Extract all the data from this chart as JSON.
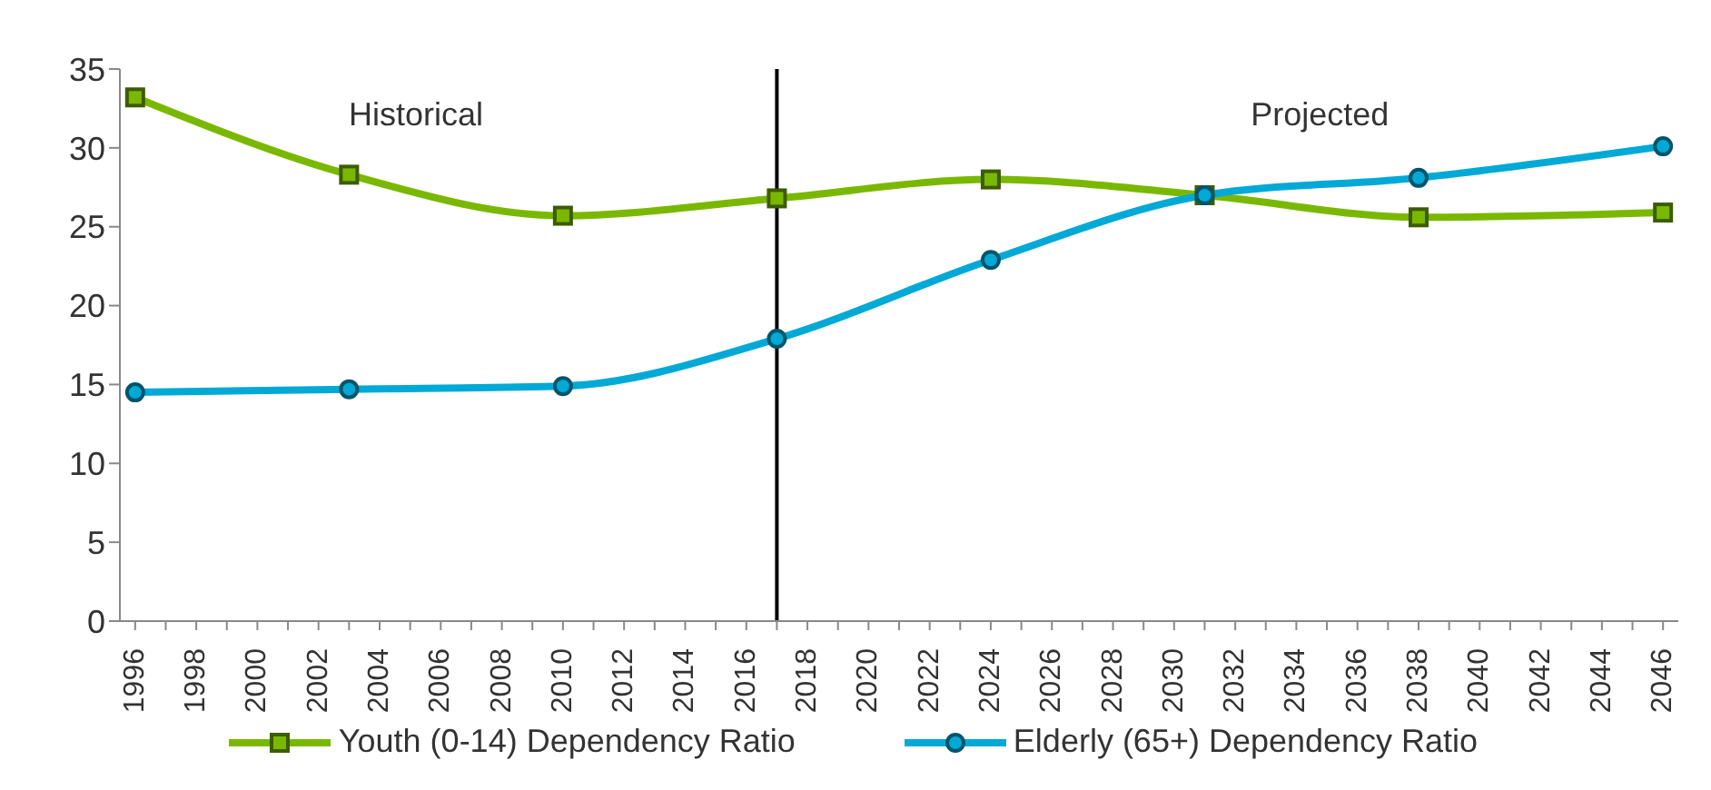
{
  "chart_data": {
    "type": "line",
    "x": [
      1996,
      2003,
      2010,
      2017,
      2024,
      2031,
      2038,
      2046
    ],
    "series": [
      {
        "name": "Youth (0-14) Dependency Ratio",
        "color": "#7ab800",
        "marker": "square",
        "values": [
          33.2,
          28.3,
          25.7,
          26.8,
          28.0,
          27.0,
          25.6,
          25.9
        ]
      },
      {
        "name": "Elderly (65+) Dependency Ratio",
        "color": "#00a9d6",
        "marker": "circle",
        "values": [
          14.5,
          14.7,
          14.9,
          17.9,
          22.9,
          27.0,
          28.1,
          30.1
        ]
      }
    ],
    "xlim": [
      1995.5,
      2046.5
    ],
    "xticks": [
      1996,
      {
        "value": 1997,
        "label": null
      },
      1998,
      {
        "value": 1999,
        "label": null
      },
      2000,
      {
        "value": 2001,
        "label": null
      },
      2002,
      {
        "value": 2003,
        "label": null
      },
      2004,
      {
        "value": 2005,
        "label": null
      },
      2006,
      {
        "value": 2007,
        "label": null
      },
      2008,
      {
        "value": 2009,
        "label": null
      },
      2010,
      {
        "value": 2011,
        "label": null
      },
      2012,
      {
        "value": 2013,
        "label": null
      },
      2014,
      {
        "value": 2015,
        "label": null
      },
      2016,
      {
        "value": 2017,
        "label": null
      },
      2018,
      {
        "value": 2019,
        "label": null
      },
      2020,
      {
        "value": 2021,
        "label": null
      },
      2022,
      {
        "value": 2023,
        "label": null
      },
      2024,
      {
        "value": 2025,
        "label": null
      },
      2026,
      {
        "value": 2027,
        "label": null
      },
      2028,
      {
        "value": 2029,
        "label": null
      },
      2030,
      {
        "value": 2031,
        "label": null
      },
      2032,
      {
        "value": 2033,
        "label": null
      },
      2034,
      {
        "value": 2035,
        "label": null
      },
      2036,
      {
        "value": 2037,
        "label": null
      },
      2038,
      {
        "value": 2039,
        "label": null
      },
      2040,
      {
        "value": 2041,
        "label": null
      },
      2042,
      {
        "value": 2043,
        "label": null
      },
      2044,
      {
        "value": 2045,
        "label": null
      },
      2046
    ],
    "ylim": [
      0,
      35
    ],
    "yticks": [
      0,
      5,
      10,
      15,
      20,
      25,
      30,
      35
    ],
    "ref_lines": [
      {
        "axis": "x",
        "value": 2017,
        "color": "#000000"
      }
    ],
    "annotations": [
      "Historical",
      "Projected"
    ],
    "grid": false,
    "legend": "bottom"
  }
}
